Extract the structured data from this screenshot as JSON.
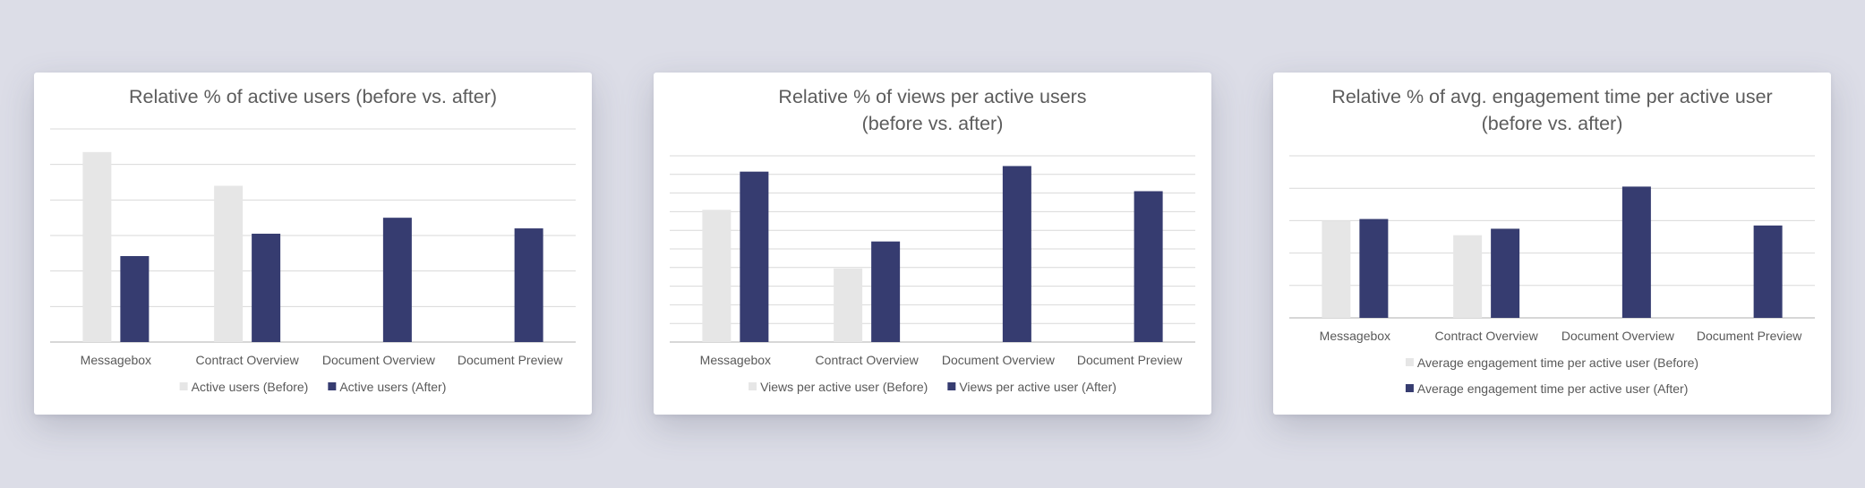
{
  "colors": {
    "before": "#e6e6e6",
    "after": "#363c70"
  },
  "chart_data": [
    {
      "type": "bar",
      "title": [
        "Relative % of active users (before vs. after)"
      ],
      "categories": [
        "Messagebox",
        "Contract Overview",
        "Document Overview",
        "Document Preview"
      ],
      "ylim": [
        0,
        6
      ],
      "gridlines": 6,
      "series": [
        {
          "name": "Active users (Before)",
          "values": [
            5.35,
            4.4,
            null,
            null
          ]
        },
        {
          "name": "Active users (After)",
          "values": [
            2.42,
            3.05,
            3.5,
            3.2
          ]
        }
      ],
      "legend_placement": "bottom-row"
    },
    {
      "type": "bar",
      "title": [
        "Relative % of views per active users",
        "(before vs. after)"
      ],
      "categories": [
        "Messagebox",
        "Contract Overview",
        "Document Overview",
        "Document Preview"
      ],
      "ylim": [
        0,
        10
      ],
      "gridlines": 10,
      "series": [
        {
          "name": "Views per active user (Before)",
          "values": [
            7.1,
            3.95,
            null,
            null
          ]
        },
        {
          "name": "Views per active user (After)",
          "values": [
            9.15,
            5.4,
            9.45,
            8.1
          ]
        }
      ],
      "legend_placement": "bottom-row"
    },
    {
      "type": "bar",
      "title": [
        "Relative % of avg. engagement time per active user",
        "(before vs. after)"
      ],
      "categories": [
        "Messagebox",
        "Contract Overview",
        "Document Overview",
        "Document Preview"
      ],
      "ylim": [
        0,
        5
      ],
      "gridlines": 5,
      "series": [
        {
          "name": "Average engagement time per active user (Before)",
          "values": [
            3.0,
            2.55,
            null,
            null
          ]
        },
        {
          "name": "Average engagement time per active user (After)",
          "values": [
            3.05,
            2.75,
            4.05,
            2.85
          ]
        }
      ],
      "legend_placement": "bottom-stacked"
    }
  ]
}
